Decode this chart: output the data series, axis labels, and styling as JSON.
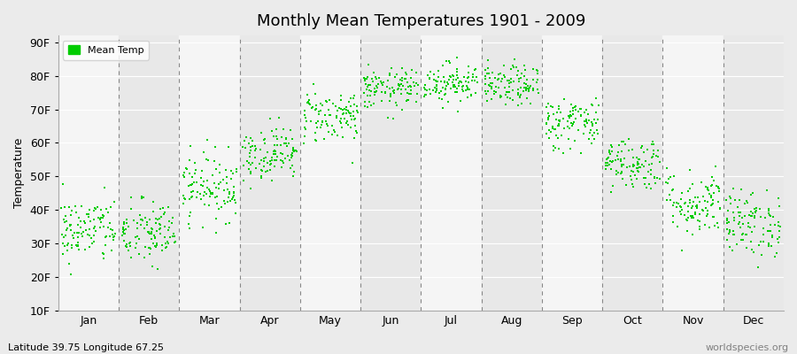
{
  "title": "Monthly Mean Temperatures 1901 - 2009",
  "ylabel": "Temperature",
  "xlabel_bottom_left": "Latitude 39.75 Longitude 67.25",
  "xlabel_bottom_right": "worldspecies.org",
  "legend_label": "Mean Temp",
  "months": [
    "Jan",
    "Feb",
    "Mar",
    "Apr",
    "May",
    "Jun",
    "Jul",
    "Aug",
    "Sep",
    "Oct",
    "Nov",
    "Dec"
  ],
  "yticks": [
    10,
    20,
    30,
    40,
    50,
    60,
    70,
    80,
    90
  ],
  "ytick_labels": [
    "10F",
    "20F",
    "30F",
    "40F",
    "50F",
    "60F",
    "70F",
    "80F",
    "90F"
  ],
  "ylim": [
    10,
    92
  ],
  "dot_color": "#00cc00",
  "bg_color": "#ebebeb",
  "plot_bg_alt1": "#f5f5f5",
  "plot_bg_alt2": "#e8e8e8",
  "n_years": 109,
  "monthly_means": [
    34,
    33,
    47,
    57,
    68,
    76,
    78,
    77,
    66,
    54,
    42,
    36
  ],
  "monthly_stds": [
    5,
    5,
    5,
    4,
    4,
    3,
    3,
    3,
    4,
    4,
    5,
    5
  ]
}
